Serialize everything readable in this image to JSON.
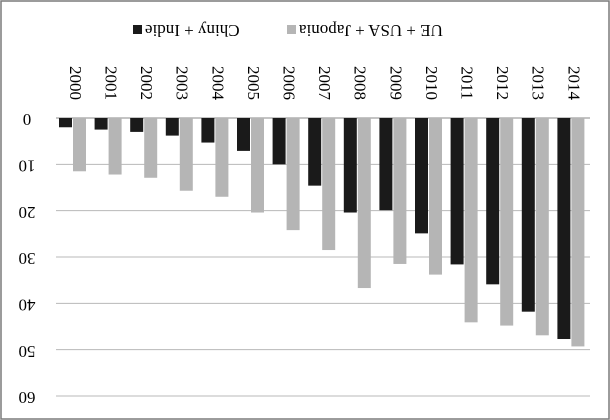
{
  "chart_data": {
    "type": "bar",
    "orientation": "mirrored-rotated-180",
    "categories": [
      "2000",
      "2001",
      "2002",
      "2003",
      "2004",
      "2005",
      "2006",
      "2007",
      "2008",
      "2009",
      "2010",
      "2011",
      "2012",
      "2013",
      "2014"
    ],
    "series": [
      {
        "name": "Chiny + Indie",
        "color": "#1a1a1a",
        "values": [
          2,
          2.5,
          3,
          3.8,
          5.3,
          7.1,
          10,
          14.6,
          20.4,
          19.9,
          24.9,
          31.6,
          35.9,
          41.8,
          47.7
        ]
      },
      {
        "name": "UE + USA + Japonia",
        "color": "#b5b5b5",
        "values": [
          11.5,
          12.2,
          12.9,
          15.7,
          17,
          20.4,
          24.2,
          28.5,
          36.7,
          31.5,
          33.8,
          44.1,
          44.8,
          46.9,
          49.3
        ]
      }
    ],
    "y_ticks": [
      0,
      10,
      20,
      30,
      40,
      50,
      60
    ],
    "y_tick_labels": [
      "0",
      "10",
      "20",
      "30",
      "40",
      "50",
      "60"
    ],
    "ylim": [
      0,
      60
    ],
    "grid": true,
    "legend_position": "top",
    "title": "",
    "xlabel": "",
    "ylabel": ""
  }
}
